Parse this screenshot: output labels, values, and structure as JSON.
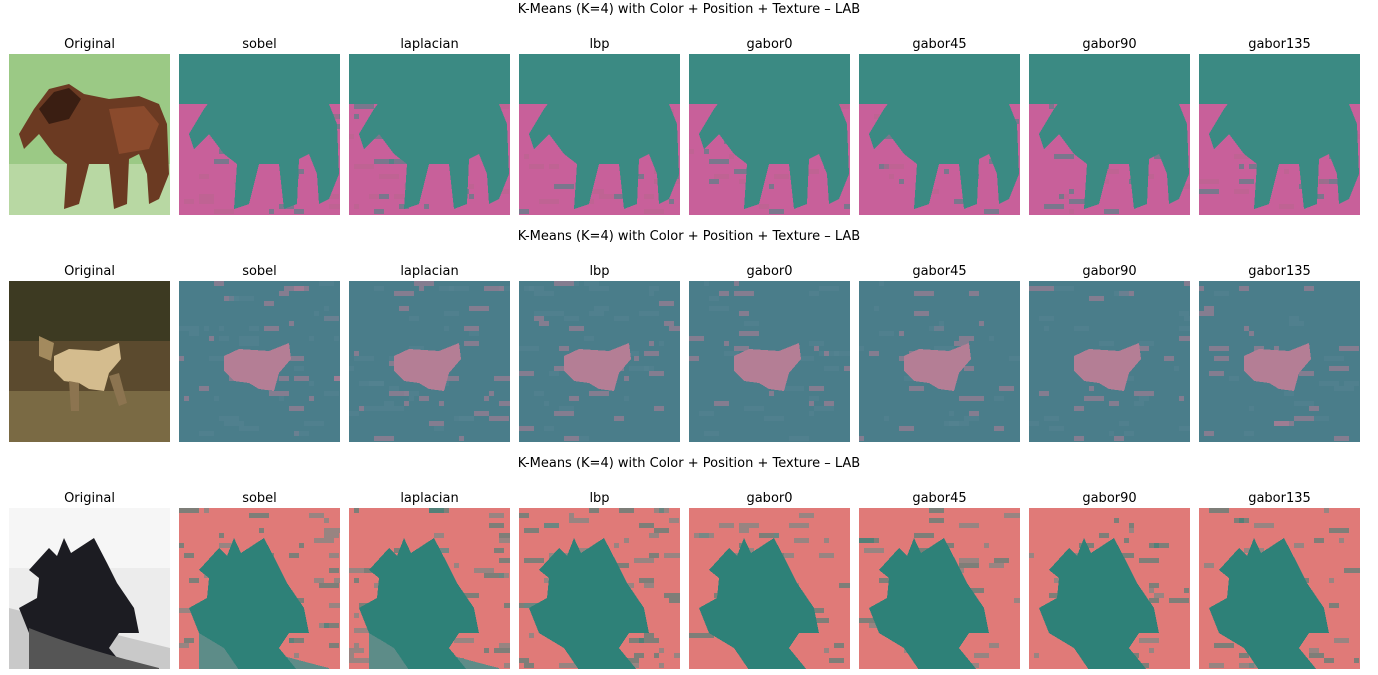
{
  "rows": [
    {
      "title": "K-Means (K=4) with Color + Position + Texture – LAB",
      "labels": [
        "Original",
        "sobel",
        "laplacian",
        "lbp",
        "gabor0",
        "gabor45",
        "gabor90",
        "gabor135"
      ],
      "subject": "horse",
      "colors": {
        "background": "#c8609a",
        "foreground": "#3b8a83",
        "secondary": "#b8668e"
      }
    },
    {
      "title": "K-Means (K=4) with Color + Position + Texture – LAB",
      "labels": [
        "Original",
        "sobel",
        "laplacian",
        "lbp",
        "gabor0",
        "gabor45",
        "gabor90",
        "gabor135"
      ],
      "subject": "deer",
      "colors": {
        "background": "#4a7d8a",
        "foreground": "#b47e95",
        "secondary": "#568491"
      }
    },
    {
      "title": "K-Means (K=4) with Color + Position + Texture – LAB",
      "labels": [
        "Original",
        "sobel",
        "laplacian",
        "lbp",
        "gabor0",
        "gabor45",
        "gabor90",
        "gabor135"
      ],
      "subject": "ship",
      "colors": {
        "background": "#e07a78",
        "foreground": "#2e8178",
        "secondary": "#5d8c88"
      }
    }
  ]
}
